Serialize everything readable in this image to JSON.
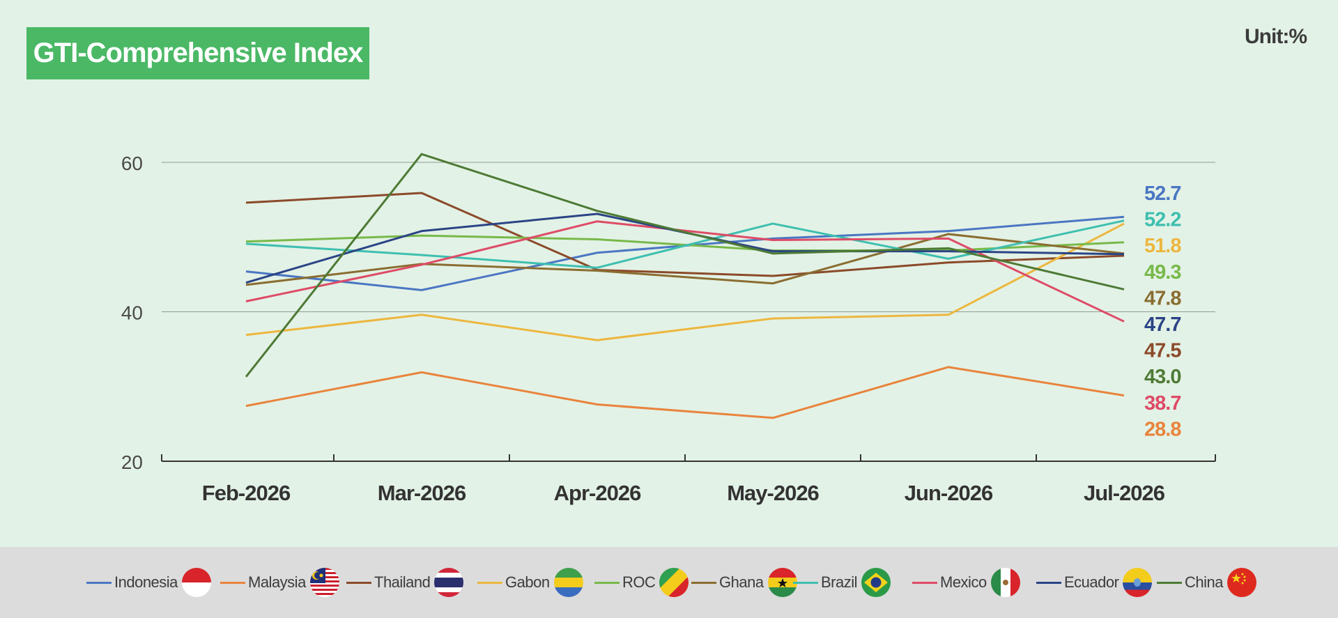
{
  "header": {
    "title": "GTI-Comprehensive Index",
    "unit": "Unit:%"
  },
  "chart_data": {
    "type": "line",
    "title": "GTI-Comprehensive Index",
    "unit": "Unit:%",
    "categories": [
      "Feb-2026",
      "Mar-2026",
      "Apr-2026",
      "May-2026",
      "Jun-2026",
      "Jul-2026"
    ],
    "ylim": [
      20,
      60
    ],
    "yticks": [
      20,
      40,
      60
    ],
    "grid": true,
    "legend_position": "bottom",
    "series": [
      {
        "name": "Indonesia",
        "color": "#4a76c3",
        "values": [
          45.4,
          42.9,
          47.9,
          49.8,
          50.8,
          52.7
        ],
        "end_label": "52.7",
        "flag": "indonesia-flag-icon"
      },
      {
        "name": "Malaysia",
        "color": "#e8843c",
        "values": [
          27.4,
          31.9,
          27.6,
          25.8,
          32.6,
          28.8
        ],
        "end_label": "28.8",
        "flag": "malaysia-flag-icon"
      },
      {
        "name": "Thailand",
        "color": "#8b4a2a",
        "values": [
          54.6,
          55.9,
          45.6,
          44.8,
          46.6,
          47.5
        ],
        "end_label": "47.5",
        "flag": "thailand-flag-icon"
      },
      {
        "name": "Gabon",
        "color": "#ecb73f",
        "values": [
          36.9,
          39.6,
          36.2,
          39.1,
          39.6,
          51.8
        ],
        "end_label": "51.8",
        "flag": "gabon-flag-icon"
      },
      {
        "name": "ROC",
        "color": "#78b94a",
        "values": [
          49.4,
          50.2,
          49.7,
          48.2,
          48.2,
          49.3
        ],
        "end_label": "49.3",
        "flag": "roc-flag-icon"
      },
      {
        "name": "Ghana",
        "color": "#8a6d31",
        "values": [
          43.6,
          46.4,
          45.5,
          43.8,
          50.4,
          47.8
        ],
        "end_label": "47.8",
        "flag": "ghana-flag-icon"
      },
      {
        "name": "Brazil",
        "color": "#3ebfb0",
        "values": [
          49.1,
          47.6,
          45.9,
          51.8,
          47.1,
          52.2
        ],
        "end_label": "52.2",
        "flag": "brazil-flag-icon"
      },
      {
        "name": "Mexico",
        "color": "#de4b67",
        "values": [
          41.4,
          46.3,
          52.1,
          49.6,
          49.8,
          38.7
        ],
        "end_label": "38.7",
        "flag": "mexico-flag-icon"
      },
      {
        "name": "Ecuador",
        "color": "#2b4486",
        "values": [
          43.9,
          50.8,
          53.1,
          48.1,
          48.1,
          47.7
        ],
        "end_label": "47.7",
        "flag": "ecuador-flag-icon"
      },
      {
        "name": "China",
        "color": "#4d7a35",
        "values": [
          31.3,
          61.1,
          53.5,
          47.8,
          48.5,
          43.0
        ],
        "end_label": "43.0",
        "flag": "china-flag-icon"
      }
    ],
    "end_label_order": [
      "Indonesia",
      "Brazil",
      "Gabon",
      "ROC",
      "Ghana",
      "Ecuador",
      "Thailand",
      "China",
      "Mexico",
      "Malaysia"
    ]
  }
}
